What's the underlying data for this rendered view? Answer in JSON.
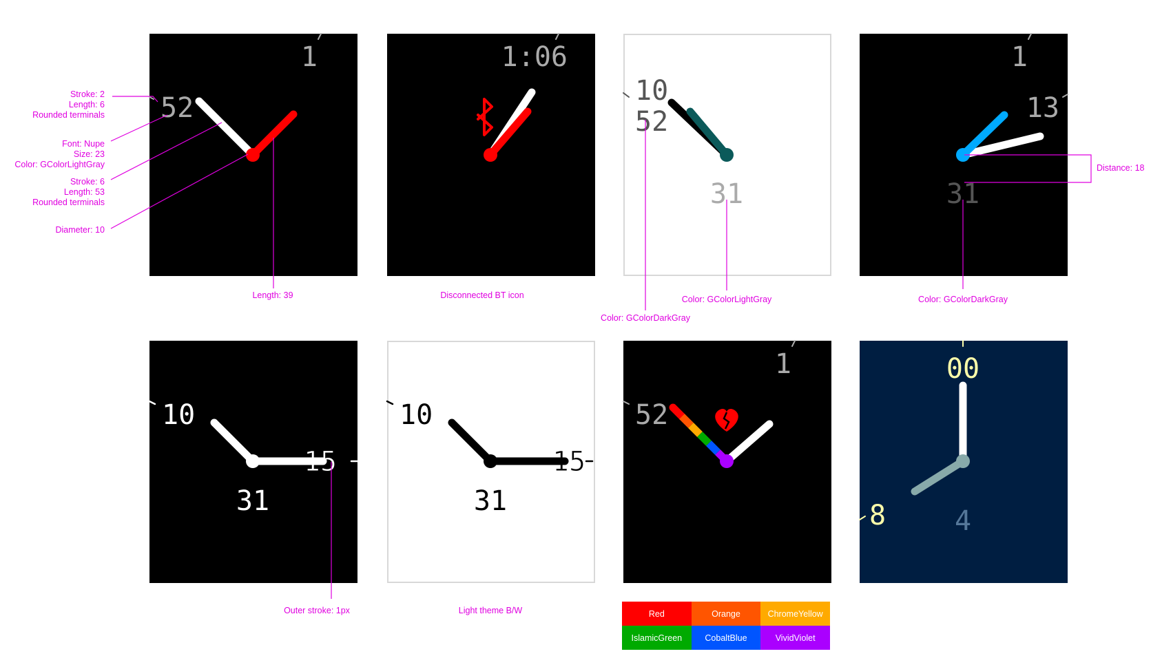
{
  "faces": {
    "f1": {
      "hour": "1",
      "minute": "52"
    },
    "f2": {
      "time": "1:06"
    },
    "f3": {
      "hour": "10",
      "minute": "52",
      "date": "31"
    },
    "f4": {
      "hour": "1",
      "minute": "13",
      "date": "31"
    },
    "f5": {
      "hour": "10",
      "minute": "15",
      "date": "31"
    },
    "f6": {
      "hour": "10",
      "minute": "15",
      "date": "31"
    },
    "f7": {
      "hour": "1",
      "minute": "52"
    },
    "f8": {
      "hour": "8",
      "minute": "00",
      "date": "4"
    }
  },
  "annotations": {
    "tick": [
      "Stroke: 2",
      "Length: 6",
      "Rounded terminals"
    ],
    "font": [
      "Font: Nupe",
      "Size: 23",
      "Color: GColorLightGray"
    ],
    "hand": [
      "Stroke: 6",
      "Length: 53",
      "Rounded terminals"
    ],
    "diameter": "Diameter: 10",
    "length39": "Length: 39",
    "bt": "Disconnected BT icon",
    "color_light": "Color: GColorLightGray",
    "color_dark_f3": "Color: GColorDarkGray",
    "color_dark_f4": "Color: GColorDarkGray",
    "distance": "Distance: 18",
    "outer_stroke": "Outer stroke: 1px",
    "light_theme": "Light theme B/W"
  },
  "legend": [
    {
      "label": "Red",
      "color": "#ff0000"
    },
    {
      "label": "Orange",
      "color": "#ff5500"
    },
    {
      "label": "ChromeYellow",
      "color": "#ffaa00"
    },
    {
      "label": "IslamicGreen",
      "color": "#00aa00"
    },
    {
      "label": "CobaltBlue",
      "color": "#0055ff"
    },
    {
      "label": "VividViolet",
      "color": "#aa00ff"
    }
  ],
  "colors": {
    "annotation": "#e000e0",
    "light_gray": "#aaaaaa",
    "dark_gray": "#555555",
    "navy": "#001e41"
  }
}
